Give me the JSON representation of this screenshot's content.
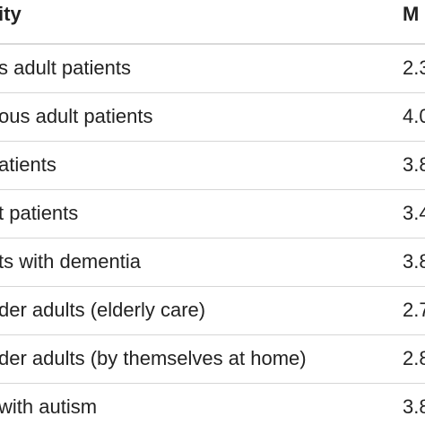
{
  "table": {
    "header": {
      "left": "ity",
      "right": "M"
    },
    "rows": [
      {
        "left": "s adult patients",
        "right": "2.3"
      },
      {
        "left": "ous adult patients",
        "right": "4.0"
      },
      {
        "left": "atients",
        "right": "3.8"
      },
      {
        "left": "t patients",
        "right": "3.4"
      },
      {
        "left": "ts with dementia",
        "right": "3.8"
      },
      {
        "left": "der adults (elderly care)",
        "right": "2.7"
      },
      {
        "left": "der adults (by themselves at home)",
        "right": "2.8"
      },
      {
        "left": "with autism",
        "right": "3.8"
      }
    ]
  }
}
